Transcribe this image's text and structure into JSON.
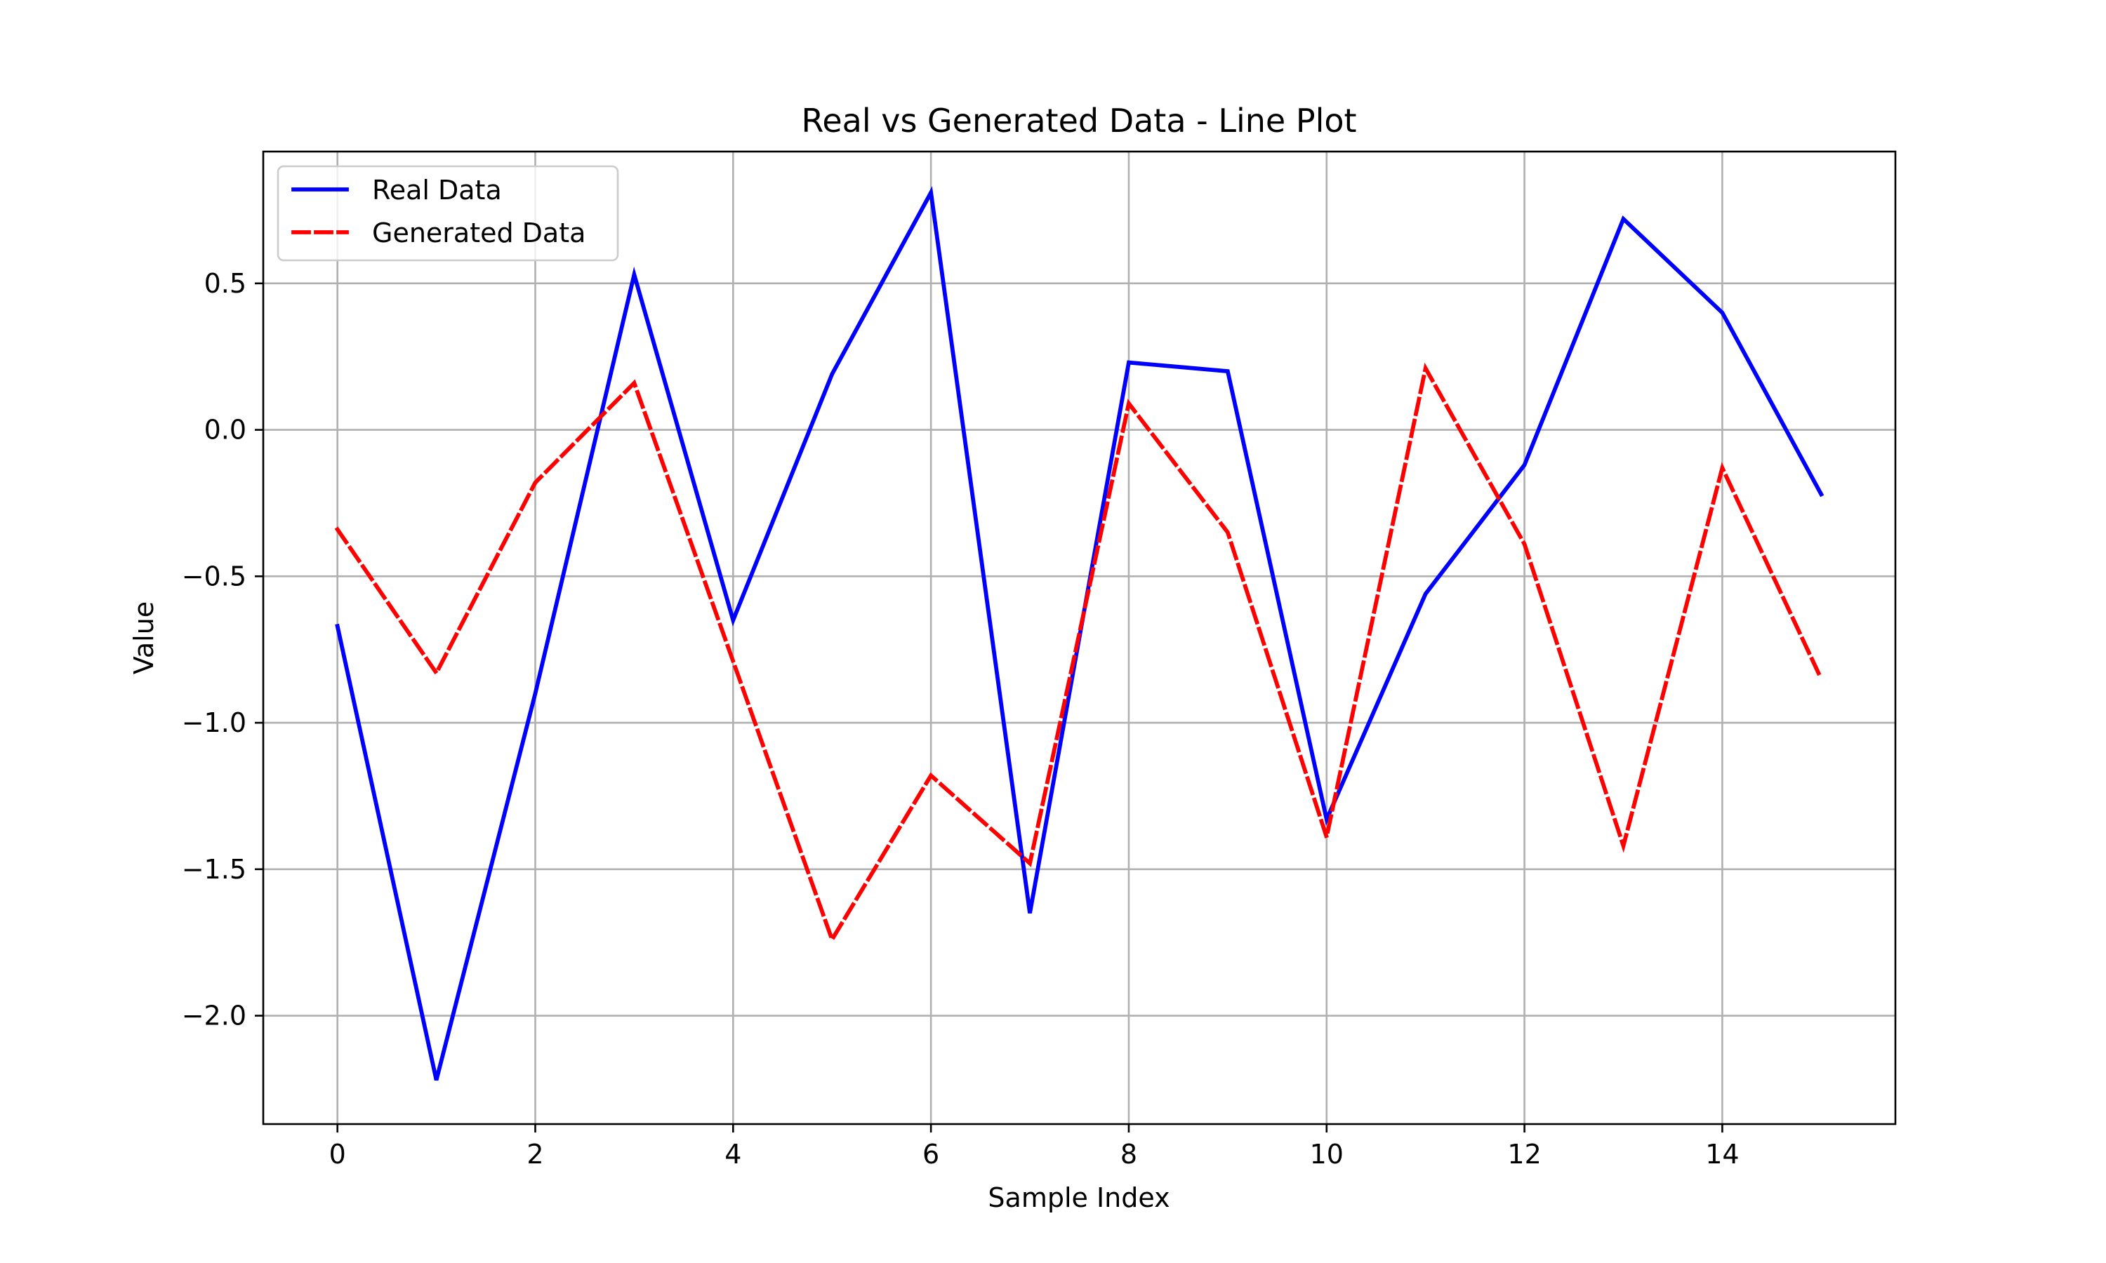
{
  "chart_data": {
    "type": "line",
    "title": "Real vs Generated Data - Line Plot",
    "xlabel": "Sample Index",
    "ylabel": "Value",
    "x": [
      0,
      1,
      2,
      3,
      4,
      5,
      6,
      7,
      8,
      9,
      10,
      11,
      12,
      13,
      14,
      15
    ],
    "xlim": [
      -0.75,
      15.75
    ],
    "ylim": [
      -2.37,
      0.95
    ],
    "xticks": [
      0,
      2,
      4,
      6,
      8,
      10,
      12,
      14
    ],
    "xtick_labels": [
      "0",
      "2",
      "4",
      "6",
      "8",
      "10",
      "12",
      "14"
    ],
    "yticks": [
      0.5,
      0.0,
      -0.5,
      -1.0,
      -1.5,
      -2.0
    ],
    "ytick_labels": [
      "0.5",
      "0.0",
      "−0.5",
      "−1.0",
      "−1.5",
      "−2.0"
    ],
    "grid": true,
    "legend_position": "top-left",
    "series": [
      {
        "name": "Real Data",
        "color": "#0000ff",
        "style": "solid",
        "values": [
          -0.67,
          -2.22,
          -0.9,
          0.53,
          -0.65,
          0.19,
          0.81,
          -1.65,
          0.23,
          0.2,
          -1.33,
          -0.56,
          -0.12,
          0.72,
          0.4,
          -0.22
        ]
      },
      {
        "name": "Generated Data",
        "color": "#ff0000",
        "style": "dashed",
        "values": [
          -0.34,
          -0.83,
          -0.18,
          0.16,
          -0.79,
          -1.74,
          -1.18,
          -1.48,
          0.09,
          -0.35,
          -1.39,
          0.21,
          -0.39,
          -1.42,
          -0.13,
          -0.85
        ]
      }
    ]
  }
}
